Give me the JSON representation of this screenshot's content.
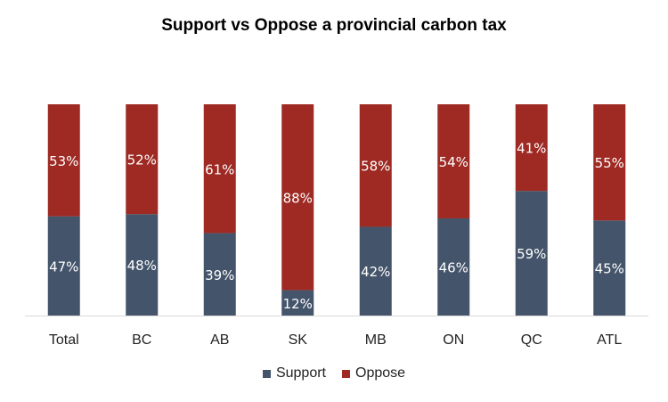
{
  "chart_data": {
    "type": "bar",
    "stacked": true,
    "percent": true,
    "title": "Support vs Oppose a provincial carbon tax",
    "xlabel": "",
    "ylabel": "",
    "ylim": [
      0,
      100
    ],
    "grid": false,
    "legend_position": "bottom",
    "categories": [
      "Total",
      "BC",
      "AB",
      "SK",
      "MB",
      "ON",
      "QC",
      "ATL"
    ],
    "series": [
      {
        "name": "Support",
        "color": "#44546a",
        "values": [
          47,
          48,
          39,
          12,
          42,
          46,
          59,
          45
        ],
        "labels": [
          "47%",
          "48%",
          "39%",
          "12%",
          "42%",
          "46%",
          "59%",
          "45%"
        ]
      },
      {
        "name": "Oppose",
        "color": "#9e2a23",
        "values": [
          53,
          52,
          61,
          88,
          58,
          54,
          41,
          55
        ],
        "labels": [
          "53%",
          "52%",
          "61%",
          "88%",
          "58%",
          "54%",
          "41%",
          "55%"
        ]
      }
    ]
  }
}
